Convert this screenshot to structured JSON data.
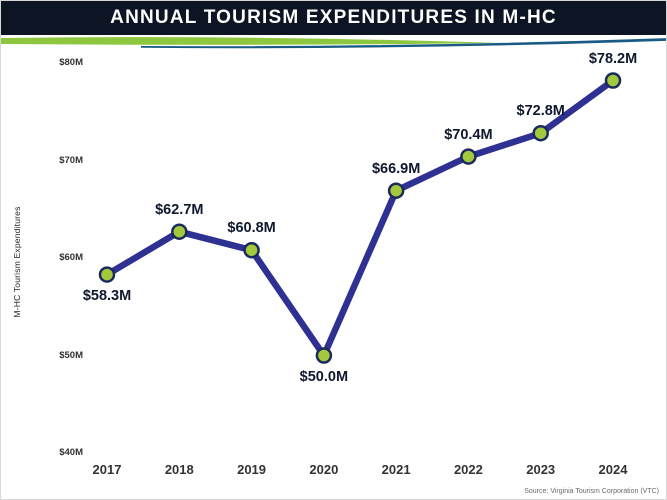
{
  "header": {
    "title": "ANNUAL TOURISM EXPENDITURES IN M-HC"
  },
  "footer": {
    "source": "Source: Virginia Tourism Corporation (VTC)"
  },
  "chart_data": {
    "type": "line",
    "title": "ANNUAL TOURISM EXPENDITURES IN M-HC",
    "xlabel": "",
    "ylabel": "M-HC Tourism Expenditures",
    "categories": [
      "2017",
      "2018",
      "2019",
      "2020",
      "2021",
      "2022",
      "2023",
      "2024"
    ],
    "values": [
      58.3,
      62.7,
      60.8,
      50.0,
      66.9,
      70.4,
      72.8,
      78.2
    ],
    "point_labels": [
      "$58.3M",
      "$62.7M",
      "$60.8M",
      "$50.0M",
      "$66.9M",
      "$70.4M",
      "$72.8M",
      "$78.2M"
    ],
    "label_positions": [
      "below",
      "above",
      "above",
      "below",
      "above",
      "above",
      "above",
      "above"
    ],
    "ylim": [
      40,
      80
    ],
    "y_ticks": [
      40,
      50,
      60,
      70,
      80
    ],
    "y_tick_labels": [
      "$40M",
      "$50M",
      "$60M",
      "$70M",
      "$80M"
    ],
    "grid": false,
    "legend": "none",
    "colors": {
      "line": "#2e3192",
      "marker_fill": "#a4c93d",
      "marker_stroke": "#1b2a5e",
      "header_bg": "#0d1424",
      "accent_green": "#8dc63f",
      "accent_blue": "#1a5b86",
      "label_text": "#10182f"
    }
  }
}
